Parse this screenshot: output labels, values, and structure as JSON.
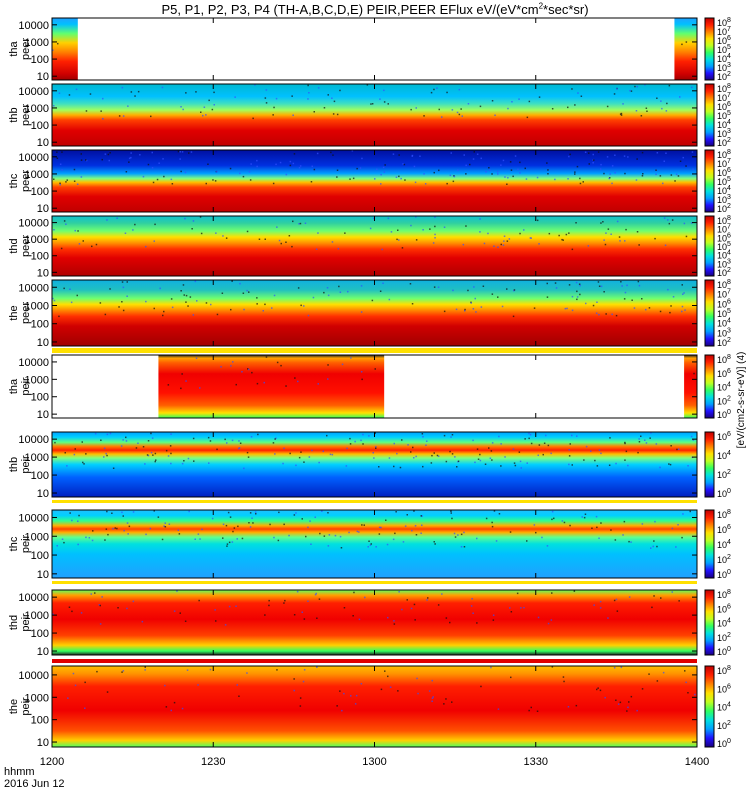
{
  "title": "P5, P1, P2, P3, P4 (TH-A,B,C,D,E) PEIR,PEER EFlux eV/(eV*cm2*sec*sr)",
  "time_axis": {
    "label_line1": "hhmm",
    "label_line2": "2016 Jun 12",
    "ticks": [
      "1200",
      "1230",
      "1300",
      "1330",
      "1400"
    ]
  },
  "colorbar_label": "[eV/(cm2-s-sr-eV)] (4)",
  "chart_data": [
    {
      "type": "heatmap",
      "ylabel": "tha\npeer",
      "yscale": "log",
      "yticks": [
        "10",
        "100",
        "1000",
        "10000"
      ],
      "xticks": [
        "1200",
        "1230",
        "1300",
        "1330",
        "1400"
      ],
      "colorbar_ticks": [
        "10^2",
        "10^3",
        "10^4",
        "10^5",
        "10^6",
        "10^7",
        "10^8"
      ],
      "coverage": [
        [
          0,
          0.04
        ],
        [
          0.965,
          1.0
        ]
      ],
      "profile": [
        [
          0,
          "#a00000"
        ],
        [
          0.1,
          "#d00000"
        ],
        [
          0.3,
          "#ff2000"
        ],
        [
          0.45,
          "#ff8000"
        ],
        [
          0.6,
          "#ffd000"
        ],
        [
          0.75,
          "#60ff70"
        ],
        [
          0.9,
          "#00c0ff"
        ],
        [
          1,
          "#20a0ff"
        ]
      ],
      "noise": 0.1
    },
    {
      "type": "heatmap",
      "ylabel": "thb\npeer",
      "yscale": "log",
      "yticks": [
        "10",
        "100",
        "1000",
        "10000"
      ],
      "xticks": [
        "1200",
        "1230",
        "1300",
        "1330",
        "1400"
      ],
      "colorbar_ticks": [
        "10^2",
        "10^3",
        "10^4",
        "10^5",
        "10^6",
        "10^7",
        "10^8"
      ],
      "coverage": [
        [
          0,
          1
        ]
      ],
      "profile": [
        [
          0,
          "#c00000"
        ],
        [
          0.25,
          "#e00000"
        ],
        [
          0.42,
          "#ff4000"
        ],
        [
          0.5,
          "#ffb000"
        ],
        [
          0.58,
          "#a0ff60"
        ],
        [
          0.68,
          "#40e0c0"
        ],
        [
          0.8,
          "#00c0ff"
        ],
        [
          1,
          "#00b8d0"
        ]
      ],
      "noise": 0.2
    },
    {
      "type": "heatmap",
      "ylabel": "thc\npeer",
      "yscale": "log",
      "yticks": [
        "10",
        "100",
        "1000",
        "10000"
      ],
      "xticks": [
        "1200",
        "1230",
        "1300",
        "1330",
        "1400"
      ],
      "colorbar_ticks": [
        "10^2",
        "10^3",
        "10^4",
        "10^5",
        "10^6",
        "10^7",
        "10^8"
      ],
      "coverage": [
        [
          0,
          1
        ]
      ],
      "profile": [
        [
          0,
          "#c00000"
        ],
        [
          0.25,
          "#e00000"
        ],
        [
          0.4,
          "#ff4000"
        ],
        [
          0.48,
          "#ffc000"
        ],
        [
          0.54,
          "#80ff80"
        ],
        [
          0.62,
          "#00a0ff"
        ],
        [
          0.75,
          "#0030e0"
        ],
        [
          1,
          "#0010a0"
        ]
      ],
      "noise": 0.35
    },
    {
      "type": "heatmap",
      "ylabel": "thd\npeer",
      "yscale": "log",
      "yticks": [
        "10",
        "100",
        "1000",
        "10000"
      ],
      "xticks": [
        "1200",
        "1230",
        "1300",
        "1330",
        "1400"
      ],
      "colorbar_ticks": [
        "10^2",
        "10^3",
        "10^4",
        "10^5",
        "10^6",
        "10^7",
        "10^8"
      ],
      "coverage": [
        [
          0,
          1
        ]
      ],
      "profile": [
        [
          0,
          "#b00000"
        ],
        [
          0.3,
          "#e00000"
        ],
        [
          0.45,
          "#ff3000"
        ],
        [
          0.55,
          "#ff9000"
        ],
        [
          0.65,
          "#ffe000"
        ],
        [
          0.75,
          "#70ff70"
        ],
        [
          0.88,
          "#30d0a0"
        ],
        [
          1,
          "#10c0d0"
        ]
      ],
      "noise": 0.2
    },
    {
      "type": "heatmap",
      "ylabel": "the\npeer",
      "yscale": "log",
      "yticks": [
        "10",
        "100",
        "1000",
        "10000"
      ],
      "xticks": [
        "1200",
        "1230",
        "1300",
        "1330",
        "1400"
      ],
      "colorbar_ticks": [
        "10^2",
        "10^3",
        "10^4",
        "10^5",
        "10^6",
        "10^7",
        "10^8"
      ],
      "coverage": [
        [
          0,
          1
        ]
      ],
      "profile": [
        [
          0,
          "#a00000"
        ],
        [
          0.3,
          "#d00000"
        ],
        [
          0.45,
          "#ff3000"
        ],
        [
          0.55,
          "#ff9000"
        ],
        [
          0.63,
          "#ffe000"
        ],
        [
          0.72,
          "#70ff70"
        ],
        [
          0.85,
          "#20c0c0"
        ],
        [
          1,
          "#10b0e0"
        ]
      ],
      "noise": 0.25
    },
    {
      "type": "heatmap",
      "ylabel": "tha\npeir",
      "yscale": "log",
      "yticks": [
        "10",
        "100",
        "1000",
        "10000"
      ],
      "xticks": [
        "1200",
        "1230",
        "1300",
        "1330",
        "1400"
      ],
      "colorbar_ticks": [
        "10^0",
        "10^2",
        "10^4",
        "10^6",
        "10^8"
      ],
      "coverage": [
        [
          0.165,
          0.515
        ],
        [
          0.98,
          1.0
        ]
      ],
      "profile": [
        [
          0,
          "#30ff60"
        ],
        [
          0.08,
          "#ffe000"
        ],
        [
          0.2,
          "#ff6000"
        ],
        [
          0.4,
          "#ff1000"
        ],
        [
          0.7,
          "#f00000"
        ],
        [
          0.88,
          "#ff6000"
        ],
        [
          0.95,
          "#ffa000"
        ],
        [
          1,
          "#202020"
        ]
      ],
      "noise": 0.15
    },
    {
      "type": "heatmap",
      "ylabel": "thb\npeir",
      "yscale": "log",
      "yticks": [
        "10",
        "100",
        "1000",
        "10000"
      ],
      "xticks": [
        "1200",
        "1230",
        "1300",
        "1330",
        "1400"
      ],
      "colorbar_ticks": [
        "10^0",
        "10^2",
        "10^4",
        "10^6"
      ],
      "coverage": [
        [
          0,
          1
        ]
      ],
      "profile": [
        [
          0,
          "#0020c0"
        ],
        [
          0.3,
          "#0060ff"
        ],
        [
          0.5,
          "#00d0ff"
        ],
        [
          0.6,
          "#80ff80"
        ],
        [
          0.66,
          "#ffc000"
        ],
        [
          0.72,
          "#ff2000"
        ],
        [
          0.78,
          "#ff8000"
        ],
        [
          0.84,
          "#60ff80"
        ],
        [
          0.92,
          "#00d0ff"
        ],
        [
          1,
          "#00a0ff"
        ]
      ],
      "noise": 0.35
    },
    {
      "type": "heatmap",
      "ylabel": "thc\npeir",
      "yscale": "log",
      "yticks": [
        "10",
        "100",
        "1000",
        "10000"
      ],
      "xticks": [
        "1200",
        "1230",
        "1300",
        "1330",
        "1400"
      ],
      "colorbar_ticks": [
        "10^0",
        "10^2",
        "10^4",
        "10^6",
        "10^8"
      ],
      "coverage": [
        [
          0,
          1
        ]
      ],
      "profile": [
        [
          0,
          "#20a0ff"
        ],
        [
          0.35,
          "#00c0ff"
        ],
        [
          0.5,
          "#00e0e0"
        ],
        [
          0.6,
          "#60ff90"
        ],
        [
          0.67,
          "#ffb000"
        ],
        [
          0.72,
          "#ff4000"
        ],
        [
          0.77,
          "#ffb000"
        ],
        [
          0.84,
          "#30ff90"
        ],
        [
          0.92,
          "#00d0ff"
        ],
        [
          1,
          "#20c0ff"
        ]
      ],
      "noise": 0.3
    },
    {
      "type": "heatmap",
      "ylabel": "thd\npeir",
      "yscale": "log",
      "yticks": [
        "10",
        "100",
        "1000",
        "10000"
      ],
      "xticks": [
        "1200",
        "1230",
        "1300",
        "1330",
        "1400"
      ],
      "colorbar_ticks": [
        "10^0",
        "10^2",
        "10^4",
        "10^6",
        "10^8"
      ],
      "coverage": [
        [
          0,
          1
        ]
      ],
      "profile": [
        [
          0,
          "#202020"
        ],
        [
          0.06,
          "#30ff60"
        ],
        [
          0.15,
          "#ffd000"
        ],
        [
          0.3,
          "#ff4000"
        ],
        [
          0.55,
          "#f00000"
        ],
        [
          0.8,
          "#ff2000"
        ],
        [
          0.92,
          "#ffa000"
        ],
        [
          1,
          "#60ff60"
        ]
      ],
      "noise": 0.15
    },
    {
      "type": "heatmap",
      "ylabel": "the\npeir",
      "yscale": "log",
      "yticks": [
        "10",
        "100",
        "1000",
        "10000"
      ],
      "xticks": [
        "1200",
        "1230",
        "1300",
        "1330",
        "1400"
      ],
      "colorbar_ticks": [
        "10^0",
        "10^2",
        "10^4",
        "10^6",
        "10^8"
      ],
      "coverage": [
        [
          0,
          1
        ]
      ],
      "profile": [
        [
          0,
          "#50ff60"
        ],
        [
          0.08,
          "#ffd000"
        ],
        [
          0.2,
          "#ff5000"
        ],
        [
          0.45,
          "#f00000"
        ],
        [
          0.75,
          "#ff2000"
        ],
        [
          0.9,
          "#ff9000"
        ],
        [
          1,
          "#ffc000"
        ]
      ],
      "noise": 0.15
    }
  ]
}
